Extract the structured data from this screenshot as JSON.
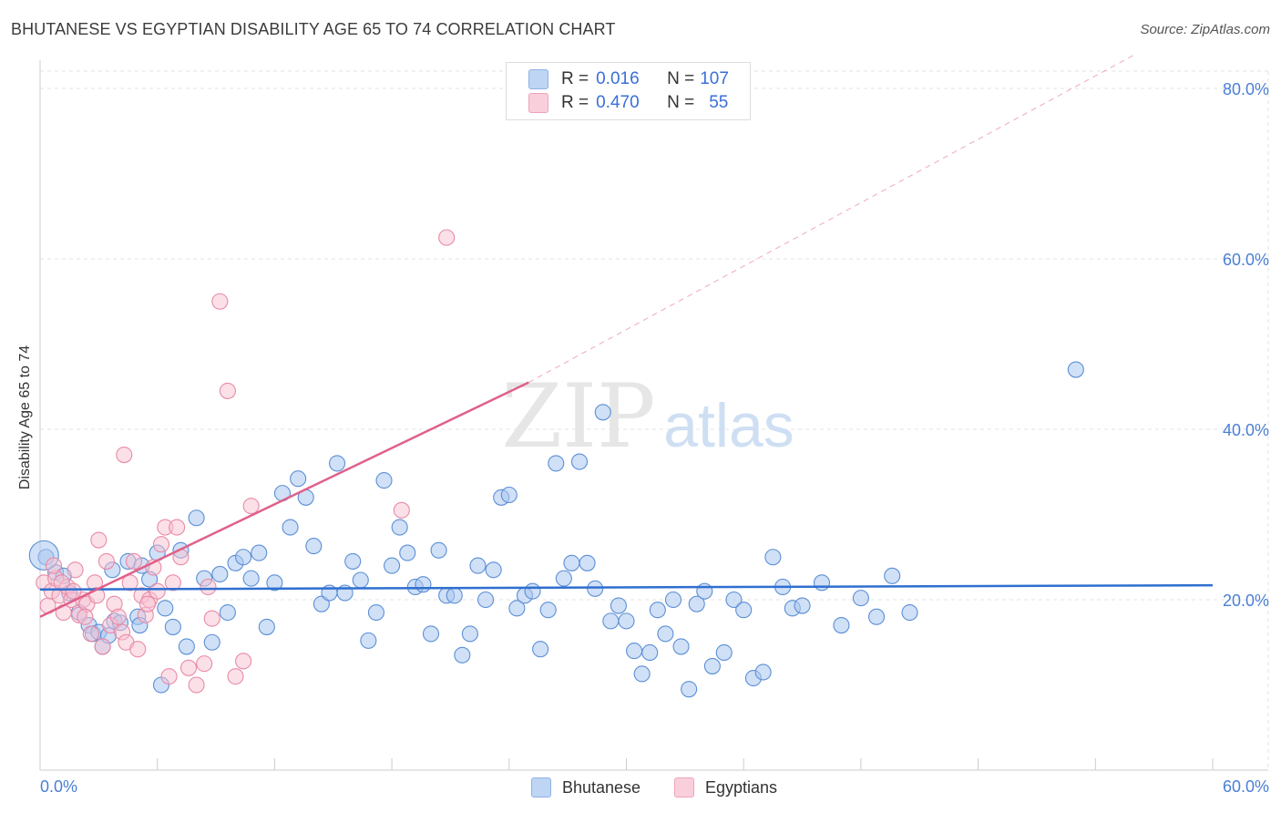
{
  "header": {
    "title": "BHUTANESE VS EGYPTIAN DISABILITY AGE 65 TO 74 CORRELATION CHART",
    "source": "Source: ZipAtlas.com"
  },
  "watermark": {
    "zip": "ZIP",
    "atlas": "atlas"
  },
  "legend_top": {
    "rows": [
      {
        "r_label": "R = ",
        "r_value": "0.016",
        "n_label": "N = ",
        "n_value": "107",
        "color": "#a9c6ef"
      },
      {
        "r_label": "R = ",
        "r_value": "0.470",
        "n_label": "N = ",
        "n_value": "55",
        "color": "#f5b6c8"
      }
    ]
  },
  "chart_data": {
    "type": "scatter",
    "title": "BHUTANESE VS EGYPTIAN DISABILITY AGE 65 TO 74 CORRELATION CHART",
    "ylabel": "Disability Age 65 to 74",
    "xlabel": "",
    "xlim": [
      0,
      60
    ],
    "ylim": [
      0,
      80
    ],
    "x_tick_labels": [
      "0.0%",
      "60.0%"
    ],
    "y_ticks": [
      20,
      40,
      60,
      80
    ],
    "y_tick_labels": [
      "20.0%",
      "40.0%",
      "60.0%",
      "80.0%"
    ],
    "grid": true,
    "legend_position": "bottom-center",
    "colors": {
      "bhutanese_fill": "#a9c6ef",
      "bhutanese_stroke": "#5b8fd6",
      "bhutanese_line": "#2f6fd0",
      "egyptian_fill": "#f7c2d1",
      "egyptian_stroke": "#e98aa6",
      "egyptian_line": "#e0608a",
      "tick_label": "#4a7fd6"
    },
    "series": [
      {
        "name": "Bhutanese",
        "r": 0.016,
        "n": 107,
        "trend": {
          "x": [
            0,
            60
          ],
          "y": [
            21.2,
            21.7
          ]
        },
        "x": [
          0.3,
          0.8,
          1.2,
          1.5,
          2.0,
          2.5,
          2.7,
          3.0,
          3.2,
          3.5,
          3.8,
          4.1,
          4.5,
          5.0,
          5.2,
          5.6,
          6.0,
          6.4,
          6.8,
          7.2,
          7.5,
          8.0,
          8.4,
          8.8,
          9.2,
          9.6,
          10.0,
          10.4,
          10.8,
          11.2,
          11.6,
          12.0,
          12.4,
          12.8,
          13.2,
          13.6,
          14.0,
          14.4,
          14.8,
          15.2,
          15.6,
          16.0,
          16.4,
          16.8,
          17.2,
          17.6,
          18.0,
          18.4,
          18.8,
          19.2,
          19.6,
          20.0,
          20.4,
          20.8,
          21.2,
          21.6,
          22.0,
          22.4,
          22.8,
          23.2,
          23.6,
          24.0,
          24.4,
          24.8,
          25.2,
          25.6,
          26.0,
          26.4,
          26.8,
          27.2,
          27.6,
          28.0,
          28.4,
          28.8,
          29.2,
          29.6,
          30.0,
          30.4,
          30.8,
          31.2,
          31.6,
          32.0,
          32.4,
          32.8,
          33.2,
          33.6,
          34.0,
          34.4,
          35.0,
          35.5,
          36.0,
          36.5,
          37.0,
          37.5,
          38.0,
          38.5,
          39.0,
          40.0,
          41.0,
          42.0,
          42.8,
          43.6,
          44.5,
          53.0,
          6.2,
          5.1,
          3.7
        ],
        "y": [
          25.0,
          23.2,
          22.8,
          20.8,
          18.5,
          17.0,
          16.0,
          16.2,
          14.5,
          15.8,
          17.5,
          17.3,
          24.5,
          18.0,
          24.0,
          22.4,
          25.5,
          19.0,
          16.8,
          25.8,
          14.5,
          29.6,
          22.5,
          15.0,
          23.0,
          18.5,
          24.3,
          25.0,
          22.5,
          25.5,
          16.8,
          22.0,
          32.5,
          28.5,
          34.2,
          32.0,
          26.3,
          19.5,
          20.8,
          36.0,
          20.8,
          24.5,
          22.3,
          15.2,
          18.5,
          34.0,
          24.0,
          28.5,
          25.5,
          21.5,
          21.8,
          16.0,
          25.8,
          20.5,
          20.5,
          13.5,
          16.0,
          24.0,
          20.0,
          23.5,
          32.0,
          32.3,
          19.0,
          20.5,
          21.0,
          14.2,
          18.8,
          36.0,
          22.5,
          24.3,
          36.2,
          24.3,
          21.3,
          42.0,
          17.5,
          19.3,
          17.5,
          14.0,
          11.3,
          13.8,
          18.8,
          16.0,
          20.0,
          14.5,
          9.5,
          19.5,
          21.0,
          12.2,
          13.8,
          20.0,
          18.8,
          10.8,
          11.5,
          25.0,
          21.5,
          19.0,
          19.3,
          22.0,
          17.0,
          20.2,
          18.0,
          22.8,
          18.5,
          47.0,
          10.0,
          17.0,
          23.5
        ]
      },
      {
        "name": "Egyptians",
        "r": 0.47,
        "n": 55,
        "trend": {
          "x": [
            0,
            25
          ],
          "y": [
            18.0,
            45.5
          ]
        },
        "trend_extension": {
          "x": [
            25,
            60
          ],
          "y": [
            45.5,
            84.0
          ]
        },
        "x": [
          0.2,
          0.4,
          0.6,
          0.8,
          1.0,
          1.2,
          1.4,
          1.6,
          1.8,
          2.0,
          2.2,
          2.4,
          2.6,
          2.8,
          3.0,
          3.2,
          3.4,
          3.6,
          3.8,
          4.0,
          4.2,
          4.4,
          4.6,
          4.8,
          5.0,
          5.2,
          5.4,
          5.6,
          5.8,
          6.0,
          6.2,
          6.4,
          6.6,
          6.8,
          7.0,
          7.2,
          7.6,
          8.0,
          8.4,
          8.8,
          9.2,
          9.6,
          10.0,
          10.4,
          10.8,
          2.9,
          4.3,
          1.1,
          1.7,
          2.3,
          0.7,
          20.8,
          18.5,
          8.6,
          5.5
        ],
        "y": [
          22.0,
          19.3,
          21.0,
          22.5,
          20.5,
          18.5,
          21.5,
          20.0,
          23.5,
          18.2,
          20.0,
          19.5,
          16.0,
          22.0,
          27.0,
          14.5,
          24.5,
          17.0,
          19.5,
          18.0,
          16.2,
          15.0,
          22.0,
          24.5,
          14.2,
          20.5,
          18.2,
          20.0,
          23.8,
          21.0,
          26.5,
          28.5,
          11.0,
          22.0,
          28.5,
          25.0,
          12.0,
          10.0,
          12.5,
          17.8,
          55.0,
          44.5,
          11.0,
          12.8,
          31.0,
          20.5,
          37.0,
          22.0,
          21.0,
          18.0,
          24.0,
          62.5,
          30.5,
          21.5,
          19.5
        ]
      }
    ]
  },
  "bottom_legend": {
    "items": [
      {
        "label": "Bhutanese"
      },
      {
        "label": "Egyptians"
      }
    ]
  }
}
